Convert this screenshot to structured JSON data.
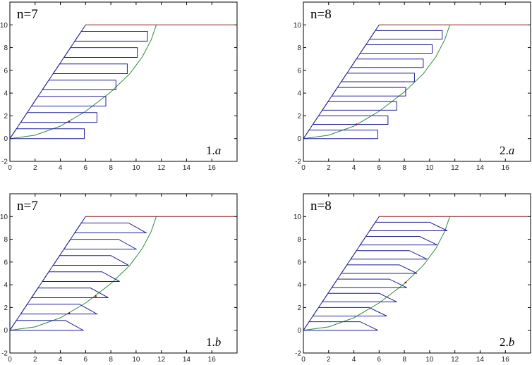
{
  "chart_data": [
    {
      "type": "line",
      "label": "n=7",
      "id_number": "1.",
      "id_letter": "a",
      "xlim": [
        0,
        18
      ],
      "ylim": [
        -2,
        12
      ],
      "xticks": [
        0,
        2,
        4,
        6,
        8,
        10,
        12,
        14,
        16
      ],
      "yticks": [
        -2,
        0,
        2,
        4,
        6,
        8,
        10
      ],
      "grid": false,
      "colors": {
        "slices": "#1f1f9a",
        "failure_curve": "#2e8b3a",
        "top_line": "#8b1a1a",
        "frame": "#000000",
        "nodes": "#b00000"
      },
      "ground_surface": {
        "x": [
          0,
          6,
          17.8
        ],
        "y": [
          0,
          10,
          10
        ]
      },
      "failure_curve": {
        "x": [
          0,
          2,
          4,
          6,
          8,
          9.5,
          10.5,
          11.2,
          11.6
        ],
        "y": [
          0,
          0.3,
          1.1,
          2.4,
          4.1,
          5.7,
          7.2,
          8.7,
          10
        ]
      },
      "curve_nodes": [
        {
          "x": 4.7,
          "y": 1.5
        }
      ],
      "slices": [
        {
          "bottom": 0,
          "top": 0.86,
          "x_start": 0,
          "x_end": 5.9,
          "shape": "rectangle"
        },
        {
          "bottom": 1.43,
          "top": 2.29,
          "x_start": 0.86,
          "x_end": 6.9,
          "shape": "rectangle"
        },
        {
          "bottom": 2.86,
          "top": 3.71,
          "x_start": 1.71,
          "x_end": 7.6,
          "shape": "rectangle"
        },
        {
          "bottom": 4.29,
          "top": 5.14,
          "x_start": 2.57,
          "x_end": 8.4,
          "shape": "rectangle"
        },
        {
          "bottom": 5.71,
          "top": 6.57,
          "x_start": 3.43,
          "x_end": 9.3,
          "shape": "rectangle"
        },
        {
          "bottom": 7.14,
          "top": 8.0,
          "x_start": 4.29,
          "x_end": 10.1,
          "shape": "rectangle"
        },
        {
          "bottom": 8.57,
          "top": 9.43,
          "x_start": 5.14,
          "x_end": 10.9,
          "shape": "rectangle"
        }
      ]
    },
    {
      "type": "line",
      "label": "n=8",
      "id_number": "2.",
      "id_letter": "a",
      "xlim": [
        0,
        18
      ],
      "ylim": [
        -2,
        12
      ],
      "xticks": [
        0,
        2,
        4,
        6,
        8,
        10,
        12,
        14,
        16
      ],
      "yticks": [
        -2,
        0,
        2,
        4,
        6,
        8,
        10
      ],
      "grid": false,
      "colors": {
        "slices": "#1f1f9a",
        "failure_curve": "#2e8b3a",
        "top_line": "#8b1a1a",
        "frame": "#000000",
        "nodes": "#b00000"
      },
      "ground_surface": {
        "x": [
          0,
          6,
          17.8
        ],
        "y": [
          0,
          10,
          10
        ]
      },
      "failure_curve": {
        "x": [
          0,
          2,
          4,
          6,
          8,
          9.5,
          10.5,
          11.2,
          11.6
        ],
        "y": [
          0,
          0.3,
          1.1,
          2.4,
          4.1,
          5.7,
          7.2,
          8.7,
          10
        ]
      },
      "curve_nodes": [
        {
          "x": 4.2,
          "y": 1.25
        }
      ],
      "slices": [
        {
          "bottom": 0,
          "top": 0.75,
          "x_start": 0,
          "x_end": 5.9,
          "shape": "rectangle"
        },
        {
          "bottom": 1.25,
          "top": 2.0,
          "x_start": 0.75,
          "x_end": 6.7,
          "shape": "rectangle"
        },
        {
          "bottom": 2.5,
          "top": 3.25,
          "x_start": 1.5,
          "x_end": 7.4,
          "shape": "rectangle"
        },
        {
          "bottom": 3.75,
          "top": 4.5,
          "x_start": 2.25,
          "x_end": 8.1,
          "shape": "rectangle"
        },
        {
          "bottom": 5.0,
          "top": 5.75,
          "x_start": 3.0,
          "x_end": 8.8,
          "shape": "rectangle"
        },
        {
          "bottom": 6.25,
          "top": 7.0,
          "x_start": 3.75,
          "x_end": 9.5,
          "shape": "rectangle"
        },
        {
          "bottom": 7.5,
          "top": 8.25,
          "x_start": 4.5,
          "x_end": 10.2,
          "shape": "rectangle"
        },
        {
          "bottom": 8.75,
          "top": 9.5,
          "x_start": 5.25,
          "x_end": 11.0,
          "shape": "rectangle"
        }
      ]
    },
    {
      "type": "line",
      "label": "n=7",
      "id_number": "1.",
      "id_letter": "b",
      "xlim": [
        0,
        18
      ],
      "ylim": [
        -2,
        12
      ],
      "xticks": [
        0,
        2,
        4,
        6,
        8,
        10,
        12,
        14,
        16
      ],
      "yticks": [
        -2,
        0,
        2,
        4,
        6,
        8,
        10
      ],
      "grid": false,
      "colors": {
        "slices": "#1f1f9a",
        "failure_curve": "#2e8b3a",
        "top_line": "#8b1a1a",
        "frame": "#000000",
        "nodes": "#b00000"
      },
      "ground_surface": {
        "x": [
          0,
          6,
          17.8
        ],
        "y": [
          0,
          10,
          10
        ]
      },
      "failure_curve": {
        "x": [
          0,
          2,
          4,
          6,
          8,
          9.5,
          10.5,
          11.2,
          11.6
        ],
        "y": [
          0,
          0.3,
          1.1,
          2.4,
          4.1,
          5.7,
          7.2,
          8.7,
          10
        ]
      },
      "curve_nodes": [
        {
          "x": 4.7,
          "y": 1.5
        },
        {
          "x": 6.8,
          "y": 3.0
        }
      ],
      "slices": [
        {
          "bottom": 0,
          "top": 0.86,
          "x_start": 0,
          "x_end": 5.8,
          "shape": "trapezoid"
        },
        {
          "bottom": 1.43,
          "top": 2.29,
          "x_start": 0.86,
          "x_end": 6.9,
          "shape": "trapezoid"
        },
        {
          "bottom": 2.86,
          "top": 3.71,
          "x_start": 1.71,
          "x_end": 7.8,
          "shape": "trapezoid"
        },
        {
          "bottom": 4.29,
          "top": 5.14,
          "x_start": 2.57,
          "x_end": 8.7,
          "shape": "trapezoid"
        },
        {
          "bottom": 5.71,
          "top": 6.57,
          "x_start": 3.43,
          "x_end": 9.4,
          "shape": "trapezoid"
        },
        {
          "bottom": 7.14,
          "top": 8.0,
          "x_start": 4.29,
          "x_end": 10.0,
          "shape": "trapezoid"
        },
        {
          "bottom": 8.57,
          "top": 9.43,
          "x_start": 5.14,
          "x_end": 10.8,
          "shape": "trapezoid"
        }
      ]
    },
    {
      "type": "line",
      "label": "n=8",
      "id_number": "2.",
      "id_letter": "b",
      "xlim": [
        0,
        18
      ],
      "ylim": [
        -2,
        12
      ],
      "xticks": [
        0,
        2,
        4,
        6,
        8,
        10,
        12,
        14,
        16
      ],
      "yticks": [
        -2,
        0,
        2,
        4,
        6,
        8,
        10
      ],
      "grid": false,
      "colors": {
        "slices": "#1f1f9a",
        "failure_curve": "#2e8b3a",
        "top_line": "#8b1a1a",
        "frame": "#000000",
        "nodes": "#b00000"
      },
      "ground_surface": {
        "x": [
          0,
          6,
          17.8
        ],
        "y": [
          0,
          10,
          10
        ]
      },
      "failure_curve": {
        "x": [
          0,
          2,
          4,
          6,
          8,
          9.5,
          10.5,
          11.2,
          11.6
        ],
        "y": [
          0,
          0.3,
          1.1,
          2.4,
          4.1,
          5.7,
          7.2,
          8.7,
          10
        ]
      },
      "curve_nodes": [
        {
          "x": 8.1,
          "y": 4.2
        }
      ],
      "slices": [
        {
          "bottom": 0,
          "top": 0.75,
          "x_start": 0,
          "x_end": 5.9,
          "shape": "trapezoid"
        },
        {
          "bottom": 1.25,
          "top": 2.0,
          "x_start": 0.75,
          "x_end": 6.6,
          "shape": "trapezoid"
        },
        {
          "bottom": 2.5,
          "top": 3.25,
          "x_start": 1.5,
          "x_end": 7.4,
          "shape": "trapezoid"
        },
        {
          "bottom": 3.75,
          "top": 4.5,
          "x_start": 2.25,
          "x_end": 8.2,
          "shape": "trapezoid"
        },
        {
          "bottom": 5.0,
          "top": 5.75,
          "x_start": 3.0,
          "x_end": 9.0,
          "shape": "trapezoid"
        },
        {
          "bottom": 6.25,
          "top": 7.0,
          "x_start": 3.75,
          "x_end": 9.8,
          "shape": "trapezoid"
        },
        {
          "bottom": 7.5,
          "top": 8.25,
          "x_start": 4.5,
          "x_end": 10.6,
          "shape": "trapezoid"
        },
        {
          "bottom": 8.75,
          "top": 9.5,
          "x_start": 5.25,
          "x_end": 11.4,
          "shape": "trapezoid"
        }
      ]
    }
  ]
}
